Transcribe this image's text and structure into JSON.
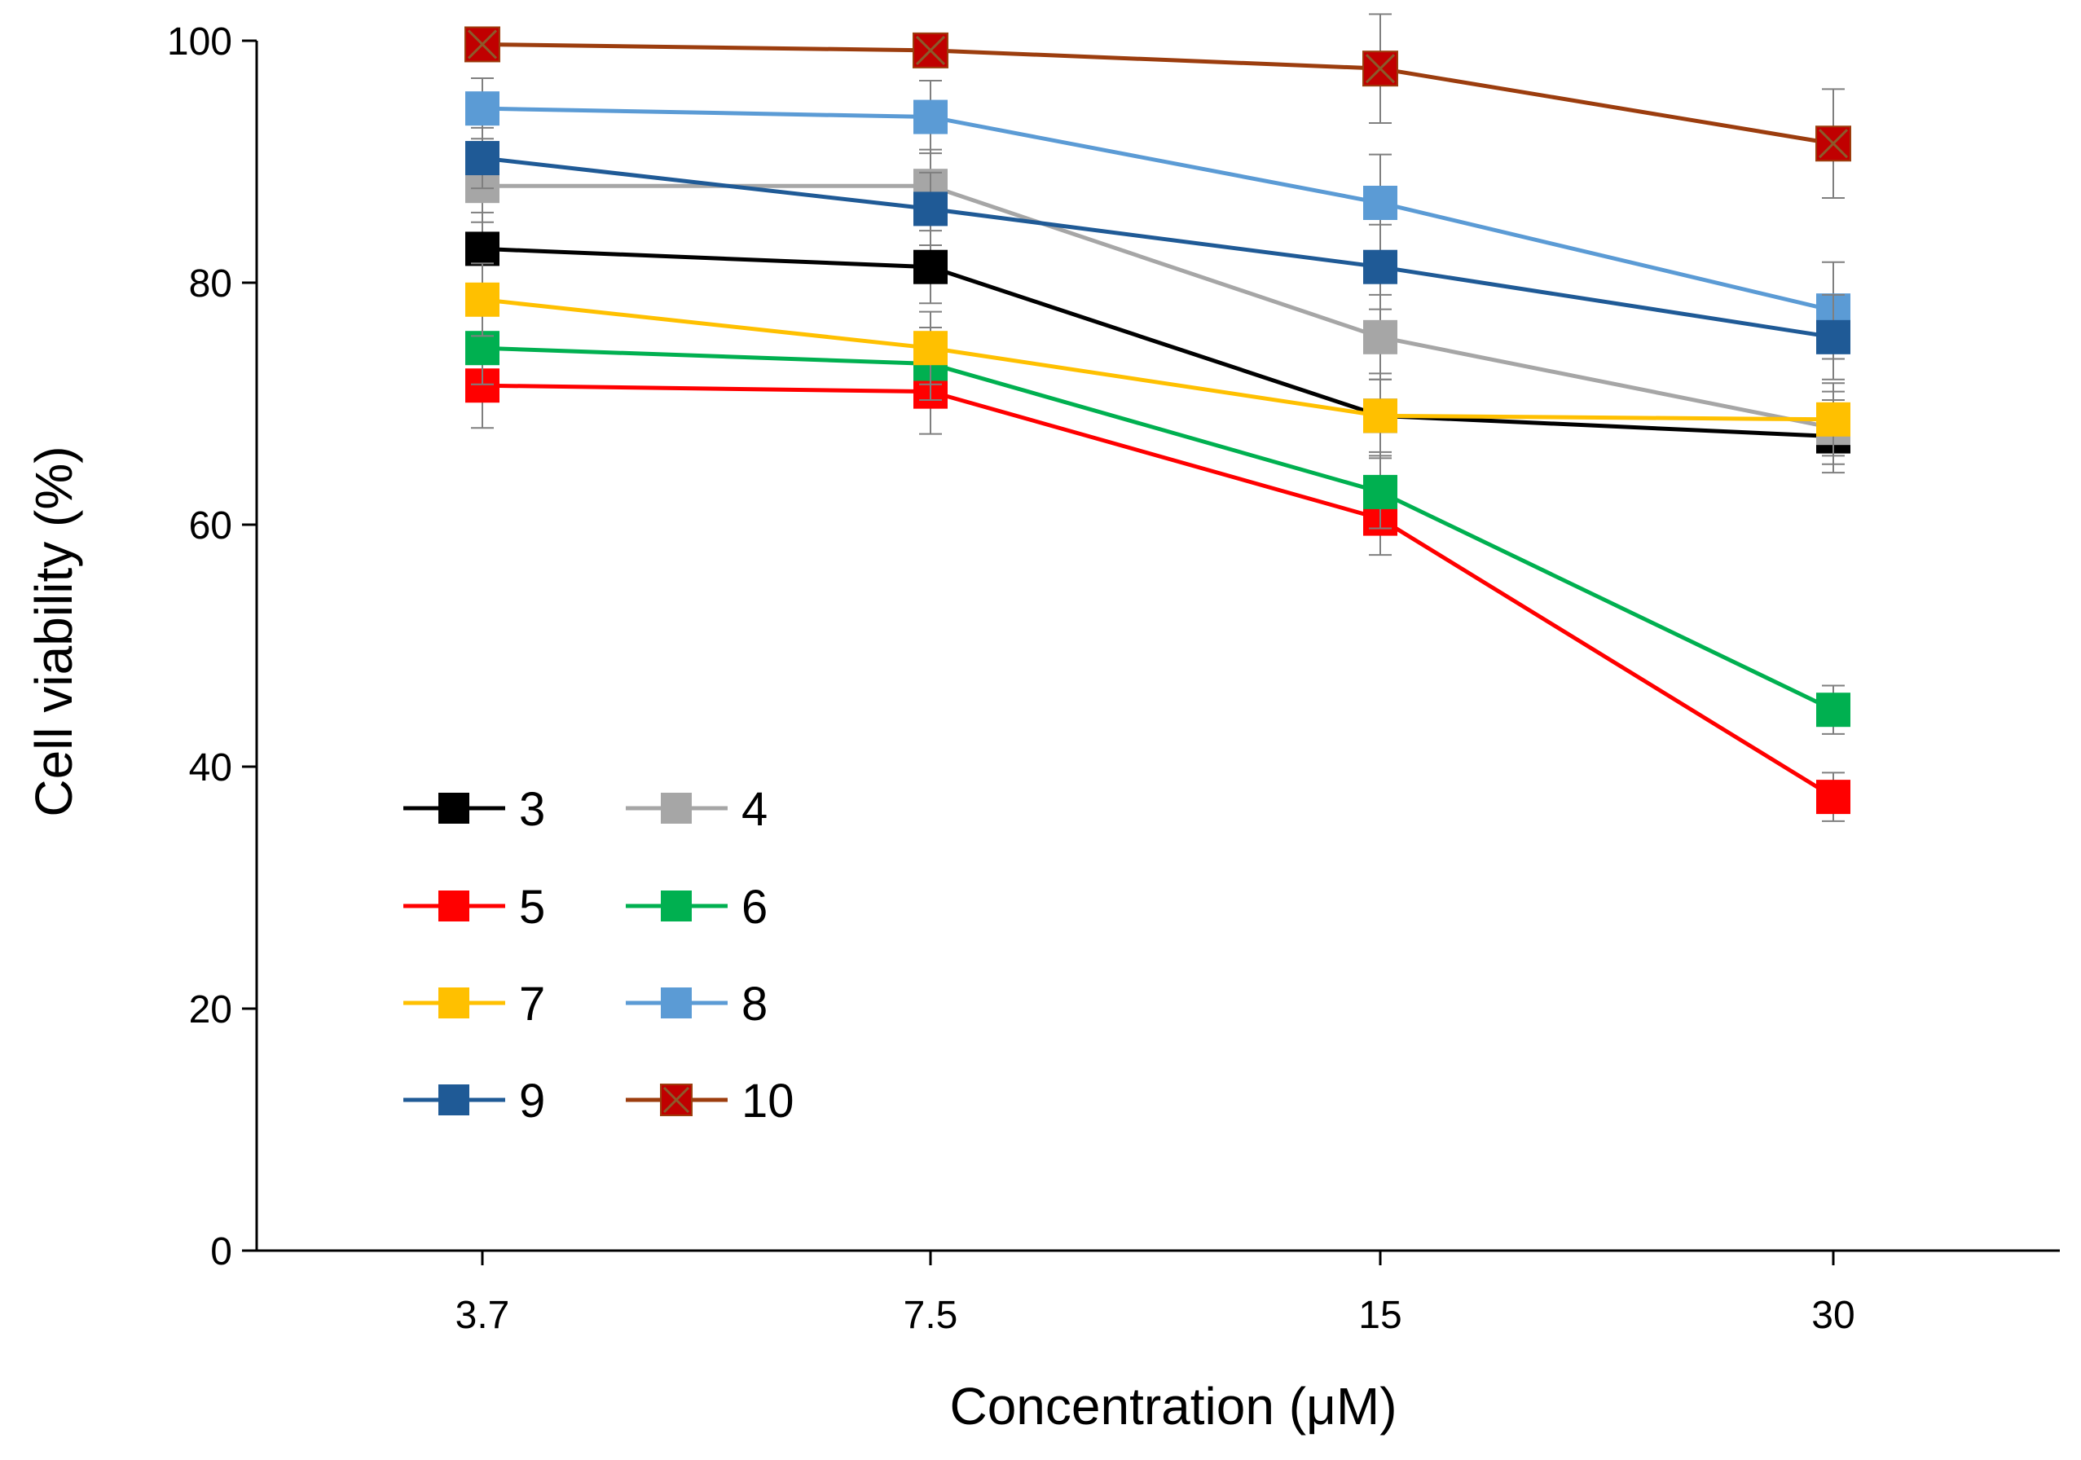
{
  "chart_data": {
    "type": "line",
    "title": "",
    "xlabel": "Concentration  (μM)",
    "ylabel": "Cell viability  (%)",
    "categories": [
      "3.7",
      "7.5",
      "15",
      "30"
    ],
    "ylim": [
      0,
      100
    ],
    "yticks": [
      0,
      20,
      40,
      60,
      80,
      100
    ],
    "grid": false,
    "legend_position": "lower-left",
    "series": [
      {
        "name": "3",
        "color": "#000000",
        "marker": "square",
        "values": [
          82.8,
          81.3,
          69.0,
          67.3
        ],
        "errors": [
          3.0,
          3.0,
          3.5,
          3.0
        ]
      },
      {
        "name": "4",
        "color": "#a6a6a6",
        "marker": "square",
        "values": [
          88.0,
          88.0,
          75.5,
          68.0
        ],
        "errors": [
          3.0,
          3.0,
          3.5,
          3.0
        ]
      },
      {
        "name": "5",
        "color": "#ff0000",
        "marker": "square",
        "values": [
          71.5,
          71.0,
          60.5,
          37.5
        ],
        "errors": [
          3.5,
          3.5,
          3.0,
          2.0
        ]
      },
      {
        "name": "6",
        "color": "#00b050",
        "marker": "square",
        "values": [
          74.6,
          73.3,
          62.7,
          44.7
        ],
        "errors": [
          3.0,
          3.0,
          3.0,
          2.0
        ]
      },
      {
        "name": "7",
        "color": "#ffc000",
        "marker": "square",
        "values": [
          78.6,
          74.6,
          69.0,
          68.7
        ],
        "errors": [
          3.0,
          3.0,
          3.0,
          3.0
        ]
      },
      {
        "name": "8",
        "color": "#5b9bd5",
        "marker": "square",
        "values": [
          94.4,
          93.7,
          86.6,
          77.7
        ],
        "errors": [
          2.5,
          3.0,
          4.0,
          4.0
        ]
      },
      {
        "name": "9",
        "color": "#1f5a96",
        "marker": "square",
        "values": [
          90.3,
          86.1,
          81.3,
          75.5
        ],
        "errors": [
          2.5,
          3.0,
          3.5,
          3.5
        ]
      },
      {
        "name": "10",
        "color": "#9c3d0e",
        "marker": "x-square",
        "marker_fill": "#c00000",
        "values": [
          99.7,
          99.2,
          97.7,
          91.5
        ],
        "errors": [
          0.5,
          0.8,
          4.5,
          4.5
        ]
      }
    ]
  }
}
